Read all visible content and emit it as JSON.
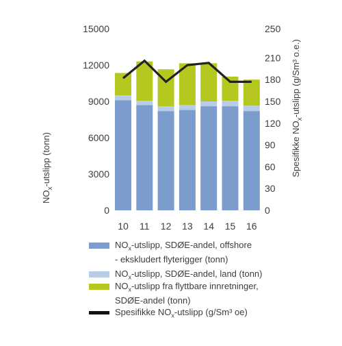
{
  "chart_data": {
    "type": "bar",
    "categories": [
      "10",
      "11",
      "12",
      "13",
      "14",
      "15",
      "16"
    ],
    "series": [
      {
        "name": "NOx-utslipp, SDØE-andel, offshore - ekskludert flyterigger (tonn)",
        "kind": "stacked-bar",
        "axis": "left",
        "color": "#7b9ccc",
        "values": [
          9100,
          8700,
          8200,
          8300,
          8600,
          8600,
          8200
        ]
      },
      {
        "name": "NOx-utslipp, SDØE-andel, land (tonn)",
        "kind": "stacked-bar",
        "axis": "left",
        "color": "#b8cce8",
        "values": [
          400,
          350,
          400,
          400,
          400,
          450,
          450
        ]
      },
      {
        "name": "NOx-utslipp fra flyttbare innretninger, SDØE-andel (tonn)",
        "kind": "stacked-bar",
        "axis": "left",
        "color": "#b5c81f",
        "values": [
          1850,
          3250,
          3050,
          3450,
          3150,
          2000,
          2150
        ]
      },
      {
        "name": "Spesifikke NOx-utslipp (g/Sm³ oe)",
        "kind": "line",
        "axis": "right",
        "color": "#222222",
        "values": [
          182,
          206,
          177,
          200,
          203,
          177,
          177
        ]
      }
    ],
    "y_left": {
      "label": "NOx-utslipp (tonn)",
      "ticks": [
        0,
        3000,
        6000,
        9000,
        12000,
        15000
      ],
      "ylim": [
        0,
        15000
      ]
    },
    "y_right": {
      "label": "Spesifikke NOx-utslipp (g/Sm³ o.e.)",
      "ticks": [
        0,
        30,
        60,
        90,
        120,
        150,
        180,
        210,
        250
      ],
      "ylim": [
        0,
        250
      ]
    },
    "grid": false,
    "legend_position": "bottom"
  },
  "legend": {
    "items": [
      {
        "text": "NOx-utslipp, SDØE-andel, offshore\n- ekskludert flyterigger (tonn)",
        "color": "#7b9ccc",
        "type": "bar"
      },
      {
        "text": "NOx-utslipp, SDØE-andel, land (tonn)",
        "color": "#b8cce8",
        "type": "bar"
      },
      {
        "text": "NOx-utslipp fra flyttbare innretninger,\nSDØE-andel (tonn)",
        "color": "#b5c81f",
        "type": "bar"
      },
      {
        "text": "Spesifikke NOx-utslipp (g/Sm³ oe)",
        "color": "#111111",
        "type": "line"
      }
    ]
  }
}
